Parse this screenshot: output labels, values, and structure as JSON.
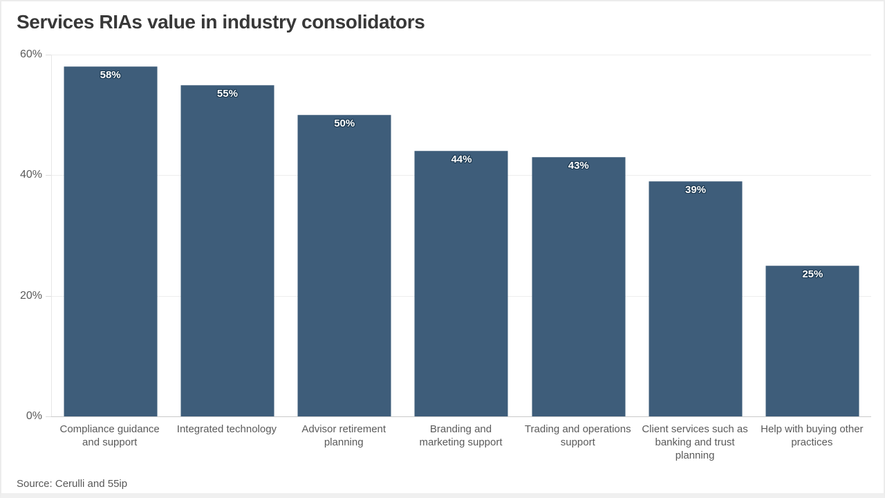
{
  "chart_data": {
    "type": "bar",
    "title": "Services RIAs value in industry consolidators",
    "source": "Source: Cerulli and 55ip",
    "categories": [
      "Compliance guidance and support",
      "Integrated technology",
      "Advisor retirement planning",
      "Branding and marketing support",
      "Trading and operations support",
      "Client services such as banking and trust planning",
      "Help with buying other practices"
    ],
    "values": [
      58,
      55,
      50,
      44,
      43,
      39,
      25
    ],
    "bar_labels": [
      "58%",
      "55%",
      "50%",
      "44%",
      "43%",
      "39%",
      "25%"
    ],
    "xlabel": "",
    "ylabel": "",
    "ylim": [
      0,
      60
    ],
    "yticks": [
      {
        "value": 0,
        "label": "0%"
      },
      {
        "value": 20,
        "label": "20%"
      },
      {
        "value": 40,
        "label": "40%"
      },
      {
        "value": 60,
        "label": "60%"
      }
    ],
    "grid": "horizontal",
    "legend": "none",
    "colors": {
      "bar": "#3e5d7a",
      "bar_label_text": "#ffffff",
      "bar_label_outline": "#1b3850",
      "title_text": "#383838",
      "axis_text": "#5a5a5a",
      "gridline": "#ededed",
      "baseline": "#c9c9c9",
      "source_text": "#575757"
    }
  }
}
